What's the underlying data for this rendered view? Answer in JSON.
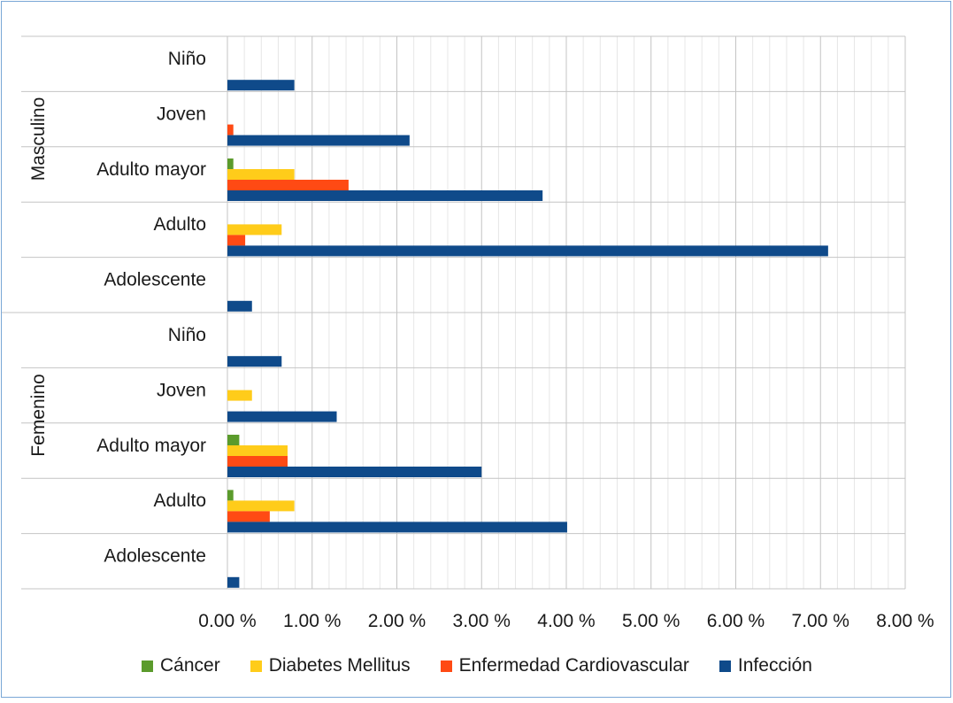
{
  "chart_data": {
    "type": "bar",
    "orientation": "horizontal",
    "title": "",
    "xlabel": "",
    "ylabel": "",
    "xlim": [
      0,
      8
    ],
    "x_ticks": [
      "0.00 %",
      "1.00 %",
      "2.00 %",
      "3.00 %",
      "4.00 %",
      "5.00 %",
      "6.00 %",
      "7.00 %",
      "8.00 %"
    ],
    "groups": [
      {
        "label": "Masculino",
        "categories": [
          "Niño",
          "Joven",
          "Adulto mayor",
          "Adulto",
          "Adolescente"
        ]
      },
      {
        "label": "Femenino",
        "categories": [
          "Niño",
          "Joven",
          "Adulto mayor",
          "Adulto",
          "Adolescente"
        ]
      }
    ],
    "series": [
      {
        "name": "Cáncer",
        "color": "#5b9b2c",
        "values": [
          0,
          0,
          0.07,
          0,
          0,
          0,
          0,
          0.14,
          0.07,
          0
        ]
      },
      {
        "name": "Diabetes Mellitus",
        "color": "#ffcc1a",
        "values": [
          0,
          0,
          0.79,
          0.64,
          0,
          0,
          0.29,
          0.71,
          0.79,
          0
        ]
      },
      {
        "name": "Enfermedad Cardiovascular",
        "color": "#ff4a14",
        "values": [
          0,
          0.07,
          1.43,
          0.21,
          0,
          0,
          0,
          0.71,
          0.5,
          0
        ]
      },
      {
        "name": "Infección",
        "color": "#0f4a8a",
        "values": [
          0.79,
          2.15,
          3.72,
          7.09,
          0.29,
          0.64,
          1.29,
          3.0,
          4.01,
          0.14
        ]
      }
    ],
    "grid": true,
    "legend_position": "bottom"
  }
}
